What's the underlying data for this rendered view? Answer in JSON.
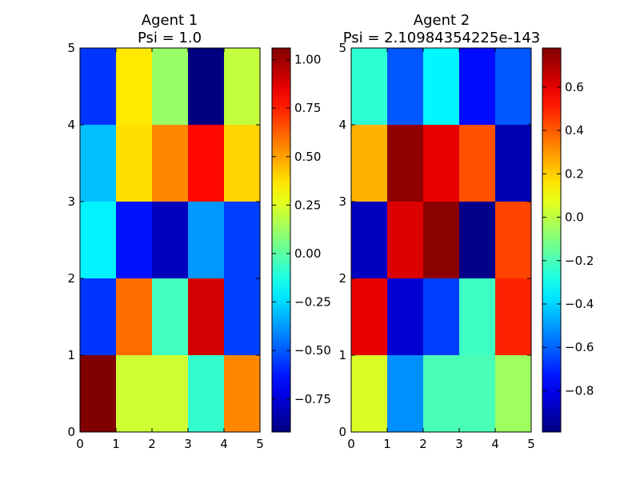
{
  "chart_data": [
    {
      "type": "heatmap",
      "title_line1": "Agent 1",
      "title_line2": "Psi = 1.0",
      "x_ticks": [
        "0",
        "1",
        "2",
        "3",
        "4",
        "5"
      ],
      "y_ticks": [
        "0",
        "1",
        "2",
        "3",
        "4",
        "5"
      ],
      "xlim": [
        0,
        5
      ],
      "ylim": [
        0,
        5
      ],
      "colormap": "jet",
      "vmin": -0.92,
      "vmax": 1.06,
      "colorbar_ticks": [
        "1.00",
        "0.75",
        "0.50",
        "0.25",
        "0.00",
        "−0.25",
        "−0.50",
        "−0.75"
      ],
      "colorbar_tick_values": [
        1.0,
        0.75,
        0.5,
        0.25,
        0.0,
        -0.25,
        -0.5,
        -0.75
      ],
      "rows_top_to_bottom": [
        [
          -0.57,
          0.36,
          0.12,
          -0.92,
          0.2
        ],
        [
          -0.3,
          0.38,
          0.55,
          0.8,
          0.4
        ],
        [
          -0.2,
          -0.64,
          -0.8,
          -0.38,
          -0.55
        ],
        [
          -0.57,
          0.6,
          -0.05,
          0.9,
          -0.55
        ],
        [
          1.06,
          0.22,
          0.22,
          -0.08,
          0.55
        ]
      ]
    },
    {
      "type": "heatmap",
      "title_line1": "Agent 2",
      "title_line2": "Psi = 2.10984354225e-143",
      "x_ticks": [
        "0",
        "1",
        "2",
        "3",
        "4",
        "5"
      ],
      "y_ticks": [
        "0",
        "1",
        "2",
        "3",
        "4",
        "5"
      ],
      "xlim": [
        0,
        5
      ],
      "ylim": [
        0,
        5
      ],
      "colormap": "jet",
      "vmin": -0.99,
      "vmax": 0.78,
      "colorbar_ticks": [
        "0.6",
        "0.4",
        "0.2",
        "0.0",
        "−0.2",
        "−0.4",
        "−0.6",
        "−0.8"
      ],
      "colorbar_tick_values": [
        0.6,
        0.4,
        0.2,
        0.0,
        -0.2,
        -0.4,
        -0.6,
        -0.8
      ],
      "rows_top_to_bottom": [
        [
          -0.25,
          -0.62,
          -0.34,
          -0.75,
          -0.62
        ],
        [
          0.25,
          0.75,
          0.6,
          0.42,
          -0.9
        ],
        [
          -0.88,
          0.62,
          0.76,
          -0.97,
          0.44
        ],
        [
          0.6,
          -0.85,
          -0.66,
          -0.22,
          0.5
        ],
        [
          0.05,
          -0.52,
          -0.2,
          -0.2,
          -0.05
        ]
      ]
    }
  ]
}
